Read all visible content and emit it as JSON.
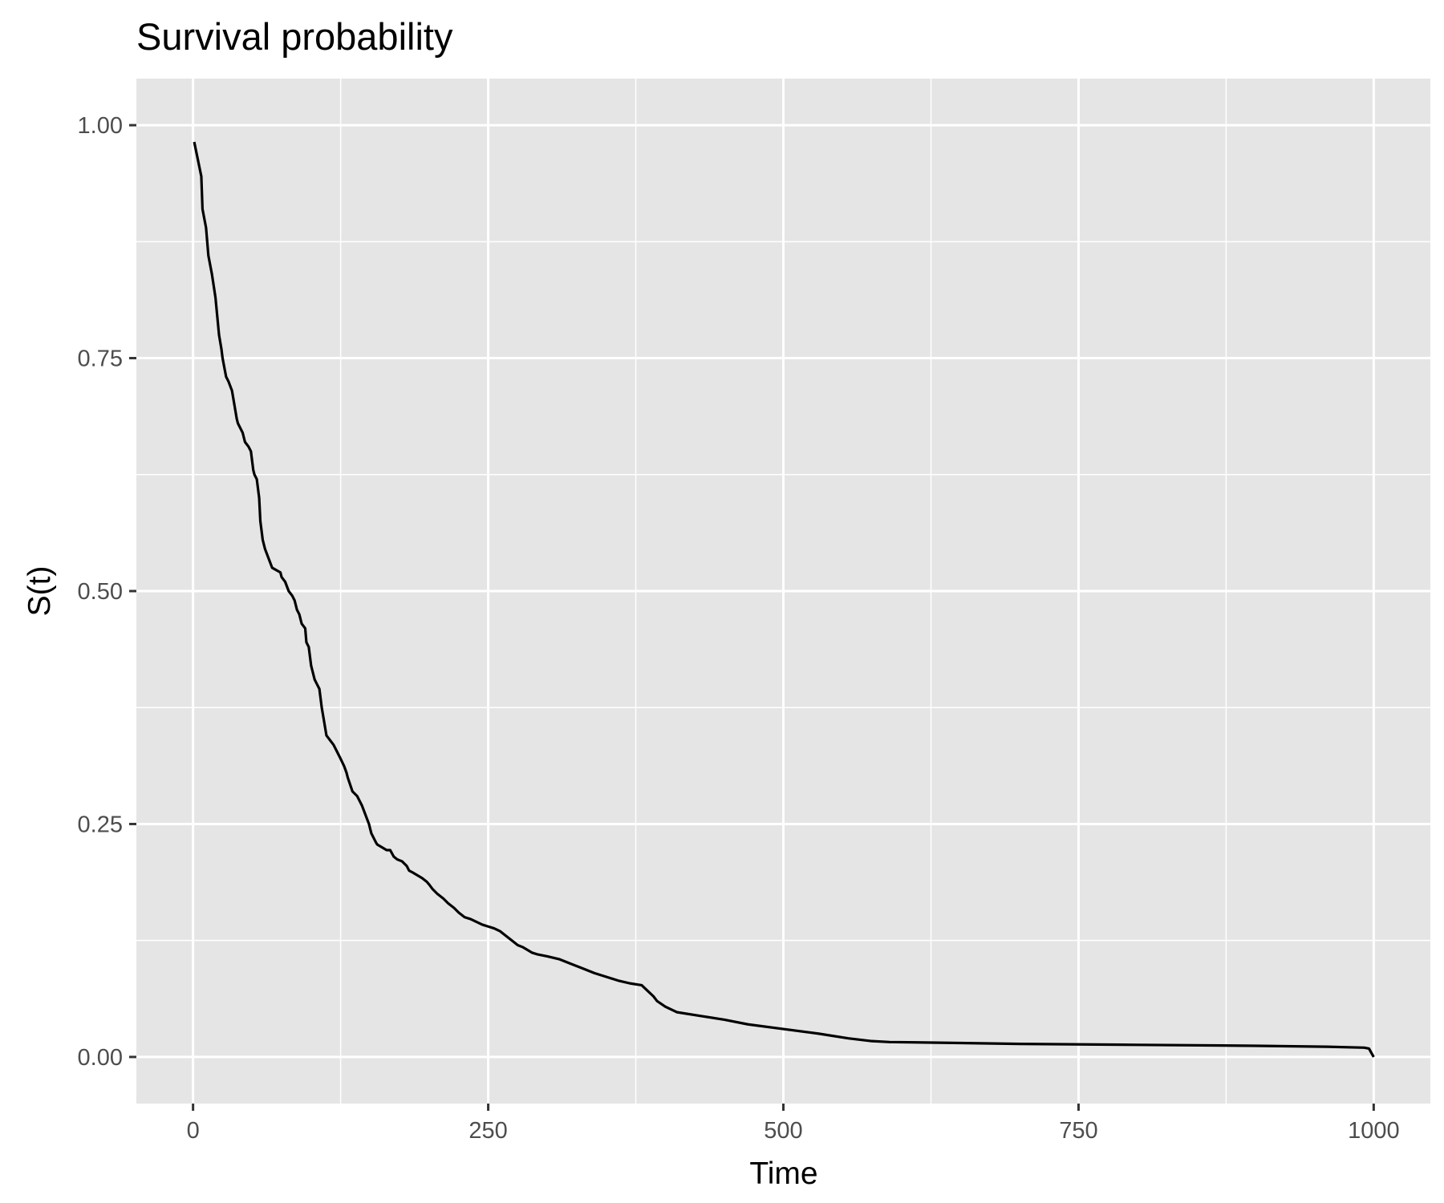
{
  "chart_data": {
    "type": "line",
    "title": "Survival probability",
    "xlabel": "Time",
    "ylabel": "S(t)",
    "xlim": [
      -48,
      1048
    ],
    "ylim": [
      -0.05,
      1.05
    ],
    "x_ticks": [
      0,
      250,
      500,
      750,
      1000
    ],
    "x_tick_labels": [
      "0",
      "250",
      "500",
      "750",
      "1000"
    ],
    "y_ticks": [
      0,
      0.25,
      0.5,
      0.75,
      1.0
    ],
    "y_tick_labels": [
      "0.00",
      "0.25",
      "0.50",
      "0.75",
      "1.00"
    ],
    "x_minor": [
      125,
      375,
      625,
      875
    ],
    "y_minor": [
      0.125,
      0.375,
      0.625,
      0.875
    ],
    "grid": true,
    "background": "#e5e5e5",
    "line_color": "#000000",
    "series": [
      {
        "x": [
          1,
          7,
          8,
          11,
          13,
          16,
          19,
          22,
          24,
          25,
          28,
          30,
          33,
          37,
          38,
          42,
          44,
          47,
          49,
          51,
          52,
          54,
          56,
          57,
          59,
          61,
          64,
          67,
          74,
          75,
          78,
          81,
          84,
          86,
          88,
          90,
          92,
          95,
          96,
          98,
          100,
          101,
          103,
          105,
          107,
          109,
          111,
          113,
          116,
          119,
          121,
          125,
          128,
          130,
          131,
          135,
          139,
          141,
          143,
          146,
          149,
          151,
          155,
          156,
          160,
          164,
          167,
          170,
          173,
          177,
          181,
          183,
          186,
          190,
          194,
          198,
          200,
          203,
          207,
          212,
          216,
          221,
          225,
          230,
          235,
          240,
          245,
          250,
          255,
          260,
          265,
          270,
          275,
          279,
          283,
          287,
          292,
          300,
          310,
          320,
          330,
          340,
          350,
          360,
          370,
          380,
          385,
          390,
          393,
          400,
          410,
          430,
          450,
          470,
          500,
          530,
          555,
          575,
          590,
          650,
          700,
          800,
          900,
          960,
          992,
          996,
          1000
        ],
        "y": [
          0.982,
          0.945,
          0.91,
          0.89,
          0.86,
          0.84,
          0.815,
          0.775,
          0.76,
          0.75,
          0.73,
          0.725,
          0.715,
          0.685,
          0.68,
          0.67,
          0.66,
          0.655,
          0.65,
          0.63,
          0.625,
          0.62,
          0.6,
          0.575,
          0.555,
          0.545,
          0.535,
          0.525,
          0.52,
          0.515,
          0.51,
          0.5,
          0.495,
          0.49,
          0.48,
          0.475,
          0.465,
          0.46,
          0.445,
          0.44,
          0.42,
          0.415,
          0.405,
          0.4,
          0.395,
          0.375,
          0.36,
          0.345,
          0.34,
          0.335,
          0.33,
          0.32,
          0.312,
          0.305,
          0.3,
          0.285,
          0.28,
          0.275,
          0.27,
          0.26,
          0.25,
          0.24,
          0.23,
          0.228,
          0.225,
          0.222,
          0.222,
          0.215,
          0.212,
          0.21,
          0.205,
          0.2,
          0.198,
          0.195,
          0.192,
          0.188,
          0.185,
          0.18,
          0.175,
          0.17,
          0.165,
          0.16,
          0.155,
          0.15,
          0.148,
          0.145,
          0.142,
          0.14,
          0.138,
          0.135,
          0.13,
          0.125,
          0.12,
          0.118,
          0.115,
          0.112,
          0.11,
          0.108,
          0.105,
          0.1,
          0.095,
          0.09,
          0.086,
          0.082,
          0.079,
          0.077,
          0.071,
          0.065,
          0.06,
          0.054,
          0.048,
          0.044,
          0.04,
          0.035,
          0.03,
          0.025,
          0.02,
          0.017,
          0.016,
          0.015,
          0.014,
          0.013,
          0.012,
          0.011,
          0.01,
          0.009,
          0.0
        ]
      }
    ]
  }
}
